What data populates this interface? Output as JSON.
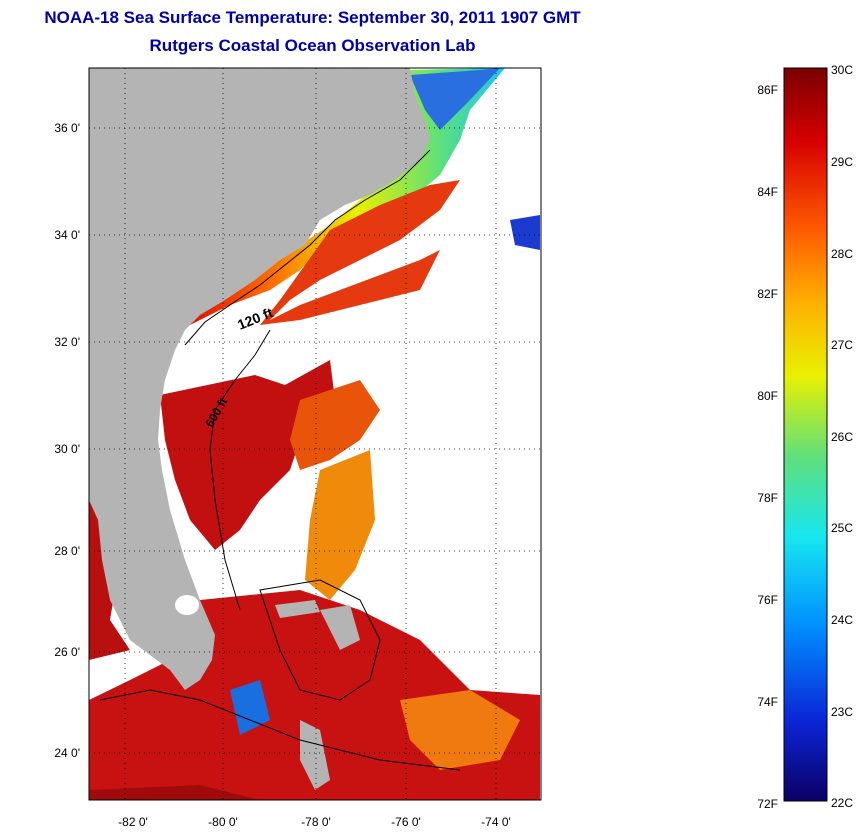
{
  "header": {
    "title": "NOAA-18 Sea Surface Temperature:  September 30, 2011 1907 GMT",
    "subtitle": "Rutgers Coastal Ocean Observation Lab"
  },
  "map": {
    "lat_labels": [
      "36 0'",
      "34 0'",
      "32 0'",
      "30 0'",
      "28 0'",
      "26 0'",
      "24 0'"
    ],
    "lon_labels": [
      "-82 0'",
      "-80 0'",
      "-78 0'",
      "-76 0'",
      "-74 0'"
    ],
    "isobaths": [
      "120 ft",
      "600 ft"
    ],
    "colors": {
      "land": "#b4b4b4",
      "no_data": "#ffffff"
    }
  },
  "colorbar": {
    "fahrenheit_labels": [
      "86F",
      "84F",
      "82F",
      "80F",
      "78F",
      "76F",
      "74F",
      "72F"
    ],
    "celsius_labels": [
      "30C",
      "29C",
      "28C",
      "27C",
      "26C",
      "25C",
      "24C",
      "23C",
      "22C"
    ],
    "min_c": 22,
    "max_c": 30,
    "gradient": [
      "#0b0064",
      "#0b26d8",
      "#0090ff",
      "#17e6f0",
      "#5fe07a",
      "#e8f000",
      "#ffb000",
      "#ff5a00",
      "#d70000",
      "#7a0000"
    ]
  }
}
